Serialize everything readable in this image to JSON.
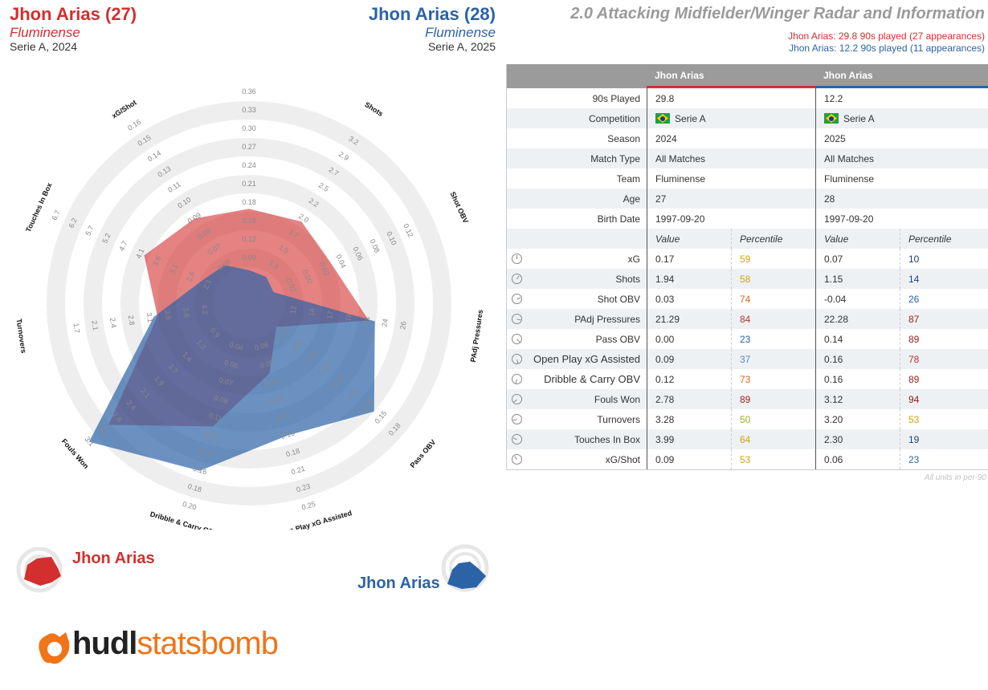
{
  "players": [
    {
      "name": "Jhon Arias (27)",
      "team": "Fluminense",
      "comp": "Serie A, 2024",
      "color": "#d32f2f"
    },
    {
      "name": "Jhon Arias (28)",
      "team": "Fluminense",
      "comp": "Serie A, 2025",
      "color": "#2c63a6"
    }
  ],
  "title": "2.0 Attacking Midfielder/Winger Radar and Information",
  "subtitles": [
    "Jhon Arias: 29.8 90s played (27 appearances)",
    "Jhon Arias: 12.2 90s played (11 appearances)"
  ],
  "table": {
    "headers": [
      "Jhon Arias",
      "Jhon Arias"
    ],
    "info": [
      {
        "label": "90s Played",
        "v1": "29.8",
        "v2": "12.2"
      },
      {
        "label": "Competition",
        "v1": "Serie A",
        "v2": "Serie A",
        "flag": true
      },
      {
        "label": "Season",
        "v1": "2024",
        "v2": "2025"
      },
      {
        "label": "Match Type",
        "v1": "All Matches",
        "v2": "All Matches"
      },
      {
        "label": "Team",
        "v1": "Fluminense",
        "v2": "Fluminense"
      },
      {
        "label": "Age",
        "v1": "27",
        "v2": "28"
      },
      {
        "label": "Birth Date",
        "v1": "1997-09-20",
        "v2": "1997-09-20"
      }
    ],
    "colheads": {
      "value": "Value",
      "pct": "Percentile"
    },
    "stats": [
      {
        "label": "xG",
        "v1": "0.17",
        "p1": "59",
        "v2": "0.07",
        "p2": "10",
        "c1": "#d4a017",
        "c2": "#1e3f7a"
      },
      {
        "label": "Shots",
        "v1": "1.94",
        "p1": "58",
        "v2": "1.15",
        "p2": "14",
        "c1": "#d4a017",
        "c2": "#1e3f7a"
      },
      {
        "label": "Shot OBV",
        "v1": "0.03",
        "p1": "74",
        "v2": "-0.04",
        "p2": "26",
        "c1": "#d2691e",
        "c2": "#2c63a6"
      },
      {
        "label": "PAdj Pressures",
        "v1": "21.29",
        "p1": "84",
        "v2": "22.28",
        "p2": "87",
        "c1": "#b03a2e",
        "c2": "#a32020"
      },
      {
        "label": "Pass OBV",
        "v1": "0.00",
        "p1": "23",
        "v2": "0.14",
        "p2": "89",
        "c1": "#2c63a6",
        "c2": "#a32020"
      },
      {
        "label": "Open Play xG Assisted",
        "v1": "0.09",
        "p1": "37",
        "v2": "0.16",
        "p2": "78",
        "c1": "#4a8cc4",
        "c2": "#b03a2e"
      },
      {
        "label": "Dribble & Carry OBV",
        "v1": "0.12",
        "p1": "73",
        "v2": "0.16",
        "p2": "89",
        "c1": "#d2691e",
        "c2": "#a32020"
      },
      {
        "label": "Fouls Won",
        "v1": "2.78",
        "p1": "89",
        "v2": "3.12",
        "p2": "94",
        "c1": "#a32020",
        "c2": "#8b1a1a"
      },
      {
        "label": "Turnovers",
        "v1": "3.28",
        "p1": "50",
        "v2": "3.20",
        "p2": "53",
        "c1": "#9aae2a",
        "c2": "#d4a017"
      },
      {
        "label": "Touches In Box",
        "v1": "3.99",
        "p1": "64",
        "v2": "2.30",
        "p2": "19",
        "c1": "#d4a017",
        "c2": "#1e3f7a"
      },
      {
        "label": "xG/Shot",
        "v1": "0.09",
        "p1": "53",
        "v2": "0.06",
        "p2": "23",
        "c1": "#d4a017",
        "c2": "#2c63a6"
      }
    ]
  },
  "footnote": "All units in per-90",
  "legend": [
    "Jhon Arias",
    "Jhon Arias"
  ],
  "logo": "hudlstatsbomb",
  "chart_data": {
    "type": "radar",
    "axes": [
      {
        "name": "xG",
        "ticks": [
          "0.09",
          "0.12",
          "0.15",
          "0.18",
          "0.21",
          "0.24",
          "0.27",
          "0.30",
          "0.33",
          "0.36"
        ]
      },
      {
        "name": "Shots",
        "ticks": [
          "1.3",
          "1.5",
          "1.7",
          "2.0",
          "2.2",
          "2.5",
          "2.7",
          "2.9",
          "3.2"
        ]
      },
      {
        "name": "Shot OBV",
        "ticks": [
          "-0.02",
          "0.00",
          "0.02",
          "0.04",
          "0.06",
          "0.08",
          "0.10",
          "0.12"
        ]
      },
      {
        "name": "PAdj Pressures",
        "ticks": [
          "12",
          "14",
          "17",
          "19",
          "21",
          "24",
          "26"
        ]
      },
      {
        "name": "Pass OBV",
        "ticks": [
          "0.01",
          "0.03",
          "0.05",
          "0.07",
          "0.09",
          "0.11",
          "0.13",
          "0.15",
          "0.18"
        ]
      },
      {
        "name": "Open Play xG Assisted",
        "ticks": [
          "0.06",
          "0.08",
          "0.10",
          "0.12",
          "0.14",
          "0.16",
          "0.18",
          "0.21",
          "0.23",
          "0.25"
        ]
      },
      {
        "name": "Dribble & Carry OBV",
        "ticks": [
          "0.04",
          "0.06",
          "0.07",
          "0.09",
          "0.11",
          "0.13",
          "0.15",
          "0.16",
          "0.18",
          "0.20"
        ]
      },
      {
        "name": "Fouls Won",
        "ticks": [
          "0.9",
          "1.2",
          "1.4",
          "1.7",
          "1.9",
          "2.1",
          "2.4",
          "2.6",
          "2.9",
          "3.1"
        ]
      },
      {
        "name": "Turnovers",
        "ticks": [
          "4.2",
          "3.8",
          "3.5",
          "3.1",
          "2.8",
          "2.4",
          "2.1",
          "1.7"
        ]
      },
      {
        "name": "Touches In Box",
        "ticks": [
          "2.1",
          "2.6",
          "3.1",
          "3.6",
          "4.1",
          "4.7",
          "5.2",
          "5.7",
          "6.2",
          "6.7"
        ]
      },
      {
        "name": "xG/Shot",
        "ticks": [
          "0.06",
          "0.07",
          "0.08",
          "0.09",
          "0.10",
          "0.11",
          "0.13",
          "0.14",
          "0.15",
          "0.16"
        ]
      }
    ],
    "series": [
      {
        "name": "Jhon Arias",
        "values": [
          0.17,
          1.94,
          0.03,
          21.29,
          0.0,
          0.09,
          0.12,
          2.78,
          3.28,
          3.99,
          0.09
        ],
        "color": "#d32f2f"
      },
      {
        "name": "Jhon Arias",
        "values": [
          0.07,
          1.15,
          -0.04,
          22.28,
          0.14,
          0.16,
          0.16,
          3.12,
          3.2,
          2.3,
          0.06
        ],
        "color": "#2c63a6"
      }
    ]
  }
}
